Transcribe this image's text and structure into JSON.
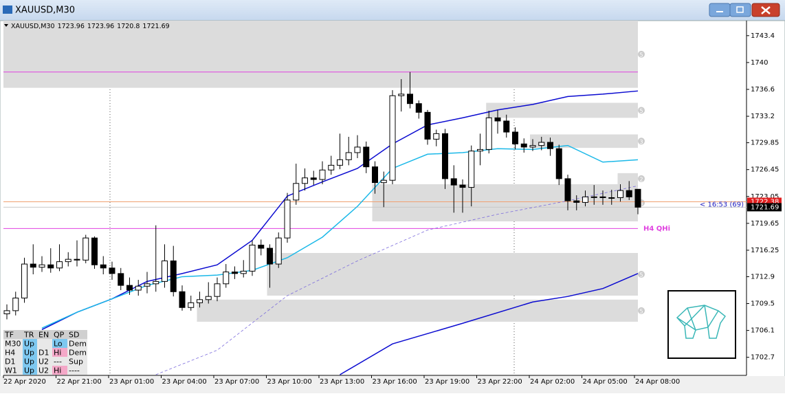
{
  "window": {
    "title": "XAUUSD,M30"
  },
  "chart_data": {
    "type": "candlestick",
    "symbol": "XAUUSD,M30",
    "categories": [
      "22 Apr 2020",
      null,
      null,
      null,
      null,
      null,
      "22 Apr 21:00",
      null,
      null,
      null,
      null,
      null,
      "23 Apr 01:00",
      null,
      null,
      null,
      null,
      null,
      "23 Apr 04:00",
      null,
      null,
      null,
      null,
      null,
      "23 Apr 07:00",
      null,
      null,
      null,
      null,
      null,
      "23 Apr 10:00",
      null,
      null,
      null,
      null,
      null,
      "23 Apr 13:00",
      null,
      null,
      null,
      null,
      null,
      "23 Apr 16:00",
      null,
      null,
      null,
      null,
      null,
      "23 Apr 19:00",
      null,
      null,
      null,
      null,
      null,
      "23 Apr 22:00",
      null,
      null,
      null,
      null,
      null,
      "24 Apr 02:00",
      null,
      null,
      null,
      null,
      null,
      "24 Apr 05:00",
      null,
      null,
      null,
      null,
      null,
      "24 Apr 08:00"
    ],
    "open": [
      1708.2,
      1708.6,
      1710.2,
      1714.5,
      1714.1,
      1714.4,
      1714.0,
      1714.8,
      1715.1,
      1715.0,
      1717.8,
      1714.4,
      1714.0,
      1713.3,
      1711.8,
      1711.2,
      1711.7,
      1712.0,
      1712.3,
      1714.9,
      1711.0,
      1709.0,
      1709.6,
      1710.0,
      1710.4,
      1712.0,
      1713.5,
      1713.3,
      1713.6,
      1716.9,
      1716.5,
      1714.5,
      1717.8,
      1722.6,
      1724.7,
      1725.4,
      1725.2,
      1726.4,
      1727.0,
      1727.7,
      1728.6,
      1729.3,
      1726.8,
      1724.8,
      1725.1,
      1735.8,
      1736.0,
      1734.8,
      1733.7,
      1730.3,
      1731.0,
      1725.3,
      1724.5,
      1724.2,
      1728.8,
      1729.0,
      1733.0,
      1732.6,
      1731.2,
      1729.7,
      1729.3,
      1729.5,
      1729.9,
      1729.1,
      1725.3,
      1722.5,
      1722.3,
      1723.0,
      1723.0,
      1722.9,
      1722.9,
      1723.8,
      1723.96
    ],
    "high": [
      1709.4,
      1711.0,
      1715.3,
      1717.0,
      1715.5,
      1716.5,
      1717.0,
      1716.0,
      1717.5,
      1718.2,
      1718.0,
      1715.5,
      1714.8,
      1714.0,
      1712.8,
      1712.5,
      1713.5,
      1719.4,
      1717.0,
      1716.8,
      1711.8,
      1710.5,
      1711.0,
      1712.2,
      1712.8,
      1714.5,
      1714.2,
      1715.0,
      1717.5,
      1717.6,
      1717.0,
      1718.5,
      1723.5,
      1727.2,
      1726.6,
      1726.3,
      1727.5,
      1728.2,
      1731.0,
      1730.6,
      1730.8,
      1730.0,
      1727.5,
      1726.2,
      1736.5,
      1737.9,
      1738.8,
      1735.2,
      1734.0,
      1731.5,
      1731.6,
      1727.0,
      1725.2,
      1729.5,
      1731.0,
      1733.9,
      1734.0,
      1733.4,
      1731.8,
      1730.4,
      1730.3,
      1730.6,
      1730.5,
      1729.6,
      1725.8,
      1723.2,
      1723.8,
      1724.5,
      1723.8,
      1723.9,
      1724.6,
      1725.0,
      1723.96
    ],
    "low": [
      1707.5,
      1708.0,
      1709.6,
      1713.2,
      1713.5,
      1713.4,
      1713.6,
      1714.2,
      1714.2,
      1714.6,
      1713.9,
      1713.2,
      1712.5,
      1711.2,
      1710.6,
      1710.5,
      1710.8,
      1711.0,
      1711.5,
      1710.4,
      1708.6,
      1708.6,
      1709.0,
      1709.5,
      1709.8,
      1711.5,
      1712.6,
      1712.8,
      1713.0,
      1715.6,
      1711.5,
      1714.0,
      1717.2,
      1722.0,
      1723.8,
      1724.5,
      1724.6,
      1725.8,
      1726.5,
      1727.0,
      1727.9,
      1726.0,
      1723.4,
      1721.7,
      1724.6,
      1733.8,
      1734.2,
      1732.9,
      1729.6,
      1729.4,
      1724.0,
      1721.0,
      1721.0,
      1721.8,
      1727.0,
      1728.5,
      1731.0,
      1730.5,
      1729.0,
      1728.6,
      1728.8,
      1728.9,
      1728.2,
      1724.5,
      1721.3,
      1721.3,
      1721.8,
      1722.0,
      1722.0,
      1722.0,
      1722.4,
      1722.6,
      1720.8
    ],
    "close": [
      1708.6,
      1710.2,
      1714.5,
      1714.1,
      1714.4,
      1714.0,
      1714.8,
      1715.1,
      1715.0,
      1717.8,
      1714.4,
      1714.0,
      1713.3,
      1711.8,
      1711.2,
      1711.7,
      1712.0,
      1712.3,
      1714.9,
      1711.0,
      1709.0,
      1709.6,
      1710.0,
      1710.4,
      1712.0,
      1713.5,
      1713.3,
      1713.6,
      1716.9,
      1716.5,
      1714.5,
      1717.8,
      1722.6,
      1724.7,
      1725.4,
      1725.2,
      1726.4,
      1727.0,
      1727.7,
      1728.6,
      1729.3,
      1726.8,
      1724.8,
      1725.1,
      1735.8,
      1736.0,
      1734.8,
      1733.7,
      1730.3,
      1731.0,
      1725.3,
      1724.5,
      1724.2,
      1728.8,
      1729.0,
      1733.0,
      1732.6,
      1731.2,
      1729.7,
      1729.3,
      1729.5,
      1729.9,
      1729.1,
      1725.3,
      1722.5,
      1722.3,
      1723.0,
      1723.0,
      1722.9,
      1722.9,
      1723.8,
      1723.0,
      1721.69
    ],
    "series": [
      {
        "color": "#0a0ad0",
        "x": [
          4,
          8,
          12,
          16,
          20,
          24,
          28,
          32,
          36,
          40,
          44,
          48,
          52,
          56,
          60,
          64,
          68,
          72
        ],
        "values": [
          1706.2,
          1708.4,
          1710.1,
          1712.3,
          1713.3,
          1714.4,
          1717.5,
          1723.1,
          1724.9,
          1726.6,
          1729.7,
          1732.1,
          1733.0,
          1734.0,
          1734.7,
          1735.7,
          1736.0,
          1736.4
        ]
      },
      {
        "color": "#1ab8e8",
        "x": [
          4,
          8,
          12,
          16,
          20,
          24,
          28,
          32,
          36,
          40,
          44,
          48,
          52,
          56,
          60,
          64,
          68,
          72
        ],
        "values": [
          1706.4,
          1708.4,
          1710.1,
          1711.8,
          1712.9,
          1713.1,
          1713.7,
          1715.3,
          1717.9,
          1721.8,
          1726.6,
          1728.4,
          1728.6,
          1729.1,
          1729.0,
          1729.5,
          1727.4,
          1727.7
        ]
      },
      {
        "color": "#7a6adc",
        "dashed": true,
        "x": [
          17,
          24,
          32,
          40,
          48,
          56,
          64,
          72
        ],
        "values": [
          1700.5,
          1703.6,
          1710.5,
          1714.9,
          1718.8,
          1720.8,
          1722.5,
          1724.4
        ]
      },
      {
        "color": "#0a0ad0",
        "x": [
          38,
          44,
          52,
          60,
          64,
          68,
          72
        ],
        "values": [
          1700.5,
          1704.4,
          1707.0,
          1709.7,
          1710.4,
          1711.4,
          1713.3
        ]
      }
    ],
    "zones": [
      {
        "x0": 0,
        "top": 1745.3,
        "bottom": 1736.8,
        "label": "5"
      },
      {
        "x0": 55,
        "top": 1734.9,
        "bottom": 1733.0,
        "label": "5"
      },
      {
        "x0": 60,
        "top": 1730.9,
        "bottom": 1729.2,
        "label": "3"
      },
      {
        "x0": 70,
        "top": 1726.0,
        "bottom": 1724.6,
        "label": "2"
      },
      {
        "x0": 42,
        "top": 1724.6,
        "bottom": 1719.9,
        "label": "3"
      },
      {
        "x0": 30,
        "top": 1715.9,
        "bottom": 1710.5,
        "label": "5"
      },
      {
        "x0": 22,
        "top": 1710.0,
        "bottom": 1707.2,
        "label": "5"
      }
    ],
    "levels": [
      {
        "price": 1738.8,
        "color": "#e040e0"
      },
      {
        "price": 1719.0,
        "color": "#e040e0",
        "label": "H4 QHi"
      }
    ],
    "ask": 1722.38,
    "timer": "< 16:53 (69)",
    "ylim": [
      1700.5,
      1745.3
    ],
    "yticks": [
      1743.4,
      1740.0,
      1736.6,
      1733.2,
      1729.85,
      1726.45,
      1723.05,
      1719.65,
      1716.25,
      1712.9,
      1709.5,
      1706.1,
      1702.7
    ]
  },
  "table": {
    "header": [
      "TF",
      "TR",
      "EN",
      "QP",
      "SD"
    ],
    "rows": [
      [
        "M30",
        "Up",
        null,
        "Lo",
        "Dem"
      ],
      [
        "H4",
        "Up",
        "D1",
        "Hi",
        "Dem"
      ],
      [
        "D1",
        "Up",
        "U2",
        "---",
        "Sup"
      ],
      [
        "W1",
        "Up",
        "U2",
        "Hi",
        "----"
      ]
    ],
    "colors": [
      [
        null,
        "#7ec8f0",
        null,
        "#7ec8f0",
        null
      ],
      [
        null,
        "#7ec8f0",
        null,
        "#f4a8c8",
        null
      ],
      [
        null,
        "#7ec8f0",
        null,
        null,
        null
      ],
      [
        null,
        "#7ec8f0",
        null,
        "#f4a8c8",
        null
      ]
    ]
  }
}
